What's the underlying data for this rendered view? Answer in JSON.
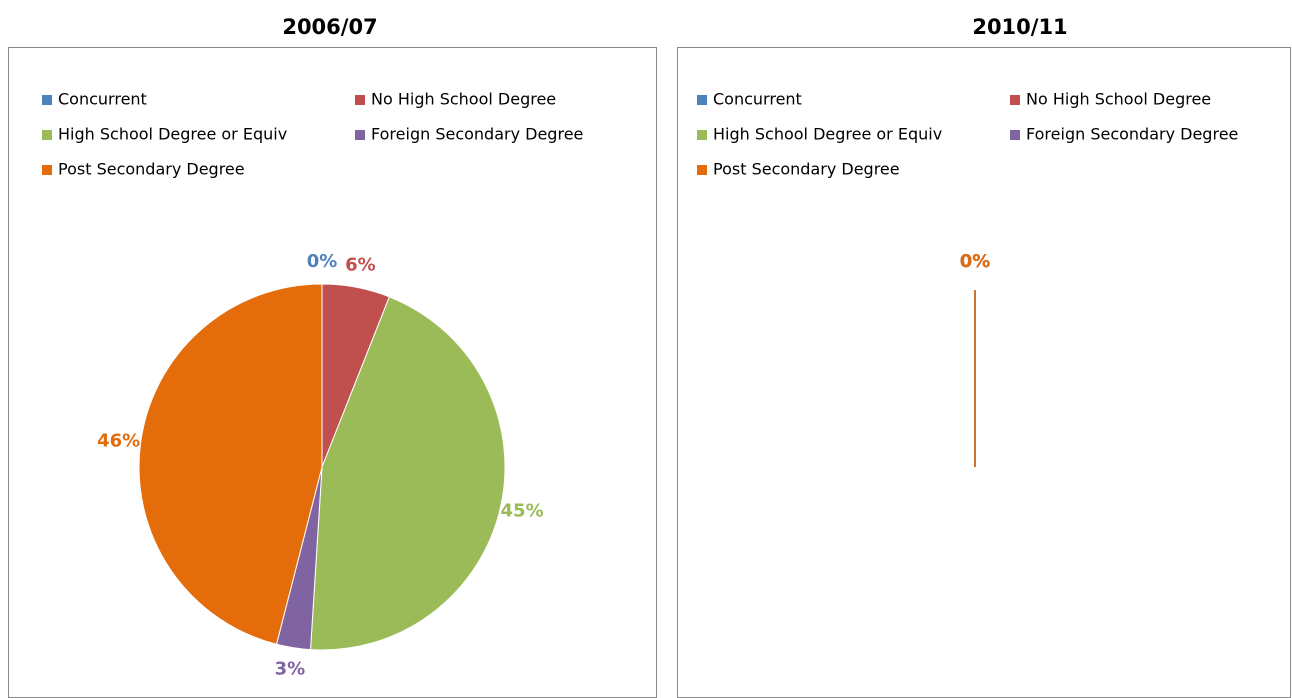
{
  "chart_data": [
    {
      "type": "pie",
      "title": "2006/07",
      "categories": [
        "Concurrent",
        "No High School Degree",
        "High School Degree or Equiv",
        "Foreign Secondary Degree",
        "Post Secondary Degree"
      ],
      "values": [
        0,
        6,
        45,
        3,
        46
      ],
      "value_labels": [
        "0%",
        "6%",
        "45%",
        "3%",
        "46%"
      ],
      "colors": [
        "#4f81bd",
        "#c0504d",
        "#9bbb59",
        "#8064a2",
        "#e46c0a"
      ]
    },
    {
      "type": "pie",
      "title": "2010/11",
      "categories": [
        "Concurrent",
        "No High School Degree",
        "High School Degree or Equiv",
        "Foreign Secondary Degree",
        "Post Secondary Degree"
      ],
      "values": [
        0,
        0,
        0,
        0,
        0
      ],
      "value_labels": [
        "0%",
        "0%",
        "0%",
        "0%",
        "0%"
      ],
      "colors": [
        "#4f81bd",
        "#c0504d",
        "#9bbb59",
        "#8064a2",
        "#e46c0a"
      ]
    }
  ]
}
